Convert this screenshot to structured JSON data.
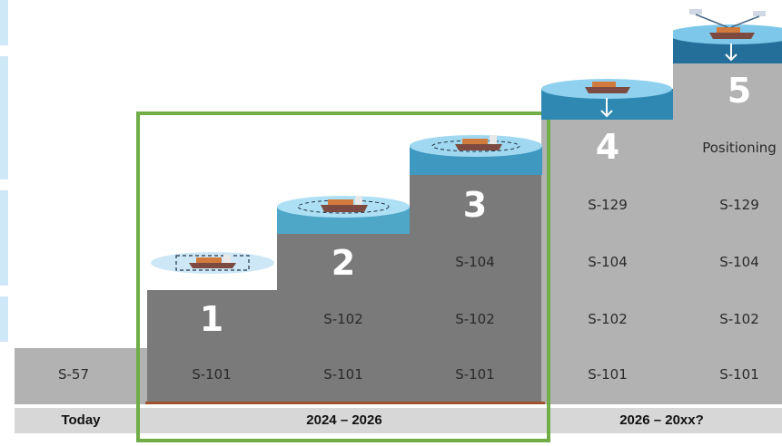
{
  "today": {
    "label": "Today",
    "standard": "S-57"
  },
  "period_a": {
    "label": "2024 – 2026"
  },
  "period_b": {
    "label": "2026 – 20xx?"
  },
  "steps": [
    {
      "number": "1",
      "standards": [
        "S-101"
      ]
    },
    {
      "number": "2",
      "standards": [
        "S-101",
        "S-102"
      ]
    },
    {
      "number": "3",
      "standards": [
        "S-101",
        "S-102",
        "S-104"
      ]
    },
    {
      "number": "4",
      "standards": [
        "S-101",
        "S-102",
        "S-104",
        "S-129"
      ]
    },
    {
      "number": "5",
      "standards": [
        "S-101",
        "S-102",
        "S-104",
        "S-129"
      ],
      "extra": "Positioning"
    }
  ],
  "colors": {
    "dark_step": "#7a7a7a",
    "light_step": "#b2b2b2",
    "label_bar": "#d7d7d7",
    "highlight": "#70ad47",
    "baseline": "#a0522d"
  }
}
